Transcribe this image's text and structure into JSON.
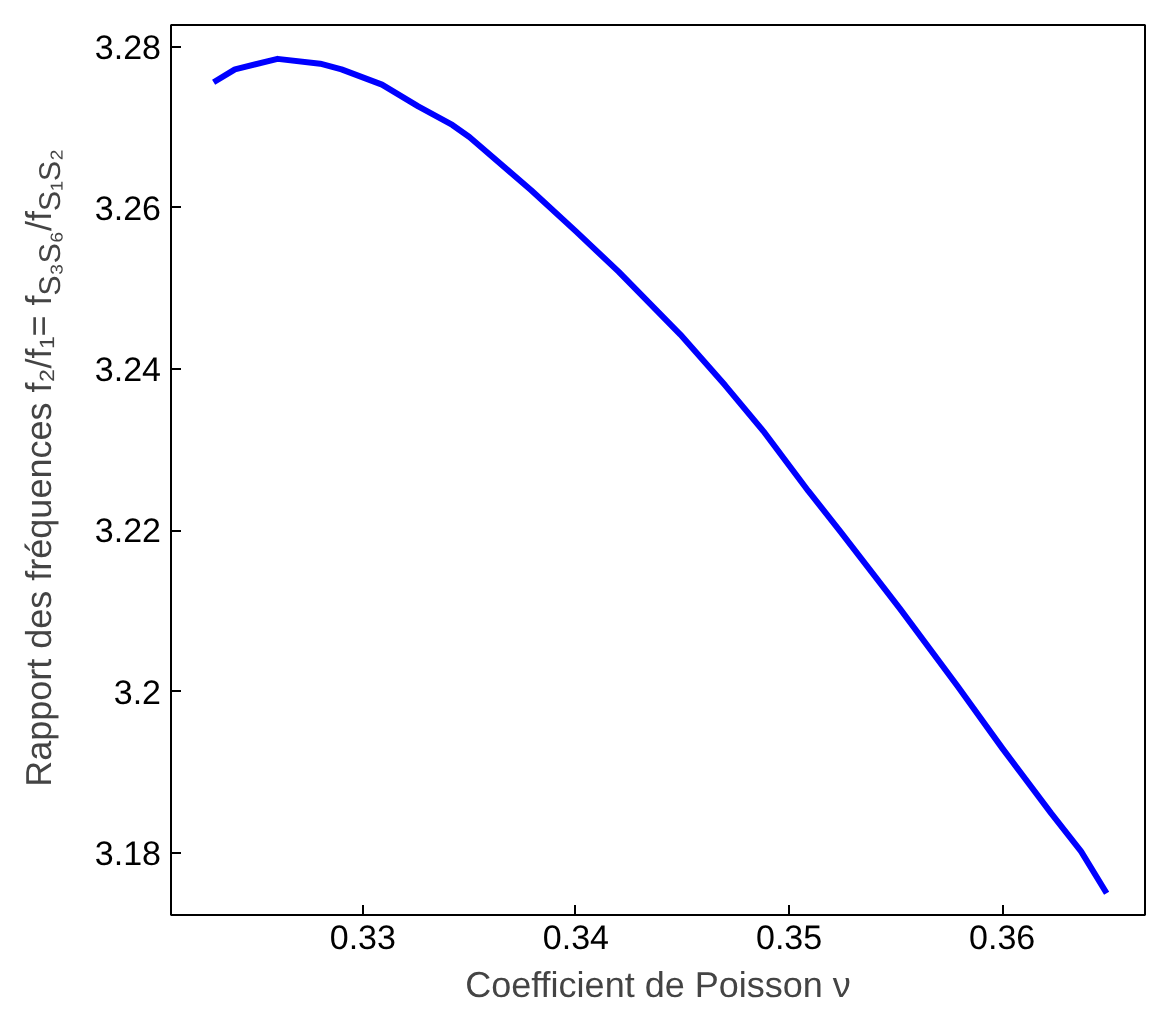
{
  "chart_data": {
    "type": "line",
    "xlabel": "Coefficient de Poisson ν",
    "ylabel": "Rapport des fréquences f₂/f₁= f$_{S₃S₆}$/f$_{S₁S₂}$",
    "x": [
      0.323,
      0.324,
      0.326,
      0.328,
      0.329,
      0.3309,
      0.3326,
      0.3342,
      0.335,
      0.3379,
      0.34,
      0.342,
      0.3449,
      0.347,
      0.3488,
      0.3509,
      0.3524,
      0.3552,
      0.3579,
      0.36,
      0.3623,
      0.3637,
      0.3649
    ],
    "series": [
      {
        "color": "#0000ff",
        "values": [
          3.2756,
          3.2772,
          3.2785,
          3.2779,
          3.2772,
          3.2753,
          3.2726,
          3.2703,
          3.2688,
          3.2622,
          3.2571,
          3.2521,
          3.2443,
          3.238,
          3.2323,
          3.2249,
          3.2199,
          3.2103,
          3.2007,
          3.193,
          3.1849,
          3.1802,
          3.175
        ]
      }
    ],
    "xlim": [
      0.321,
      0.3667
    ],
    "ylim": [
      3.1723,
      3.2827
    ],
    "xticks": [
      0.33,
      0.34,
      0.35,
      0.36
    ],
    "yticks": [
      3.18,
      3.2,
      3.22,
      3.24,
      3.26,
      3.28
    ],
    "grid": false,
    "line_style": "solid"
  }
}
